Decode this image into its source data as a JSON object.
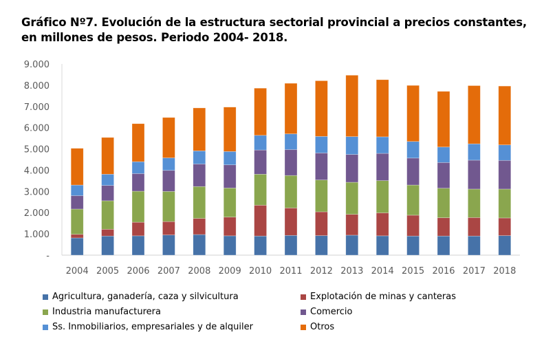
{
  "chart_data": {
    "type": "bar",
    "stacked": true,
    "title": "Gráfico Nº7. Evolución de la estructura sectorial provincial a precios constantes, en millones de pesos. Periodo 2004- 2018.",
    "xlabel": "",
    "ylabel": "",
    "ylim": [
      0,
      9000
    ],
    "yticks": [
      "-",
      "1.000",
      "2.000",
      "3.000",
      "4.000",
      "5.000",
      "6.000",
      "7.000",
      "8.000",
      "9.000"
    ],
    "grid": false,
    "legend_position": "bottom",
    "categories": [
      "2004",
      "2005",
      "2006",
      "2007",
      "2008",
      "2009",
      "2010",
      "2011",
      "2012",
      "2013",
      "2014",
      "2015",
      "2016",
      "2017",
      "2018"
    ],
    "series": [
      {
        "name": "Agricultura, ganadería, caza y silvicultura",
        "color": "#4672a8",
        "values": [
          810,
          900,
          910,
          950,
          970,
          910,
          900,
          930,
          920,
          940,
          910,
          900,
          900,
          900,
          920
        ]
      },
      {
        "name": "Explotación de minas y canteras",
        "color": "#aa4644",
        "values": [
          170,
          320,
          640,
          630,
          760,
          880,
          1450,
          1290,
          1120,
          980,
          1080,
          980,
          860,
          870,
          830
        ]
      },
      {
        "name": "Industria manufacturera",
        "color": "#8aa64e",
        "values": [
          1190,
          1340,
          1460,
          1420,
          1500,
          1370,
          1460,
          1530,
          1500,
          1510,
          1520,
          1420,
          1390,
          1340,
          1360
        ]
      },
      {
        "name": "Comercio",
        "color": "#71588f",
        "values": [
          630,
          720,
          830,
          990,
          1060,
          1090,
          1140,
          1220,
          1270,
          1310,
          1280,
          1270,
          1210,
          1360,
          1350
        ]
      },
      {
        "name": "Ss. Inmobiliarios, empresariales y de alquiler",
        "color": "#5590d5",
        "values": [
          500,
          530,
          560,
          590,
          620,
          630,
          690,
          740,
          780,
          840,
          780,
          780,
          730,
          770,
          730
        ]
      },
      {
        "name": "Otros",
        "color": "#e46c0a",
        "values": [
          1730,
          1730,
          1790,
          1900,
          2020,
          2090,
          2220,
          2380,
          2620,
          2890,
          2690,
          2640,
          2620,
          2740,
          2770
        ]
      }
    ]
  }
}
